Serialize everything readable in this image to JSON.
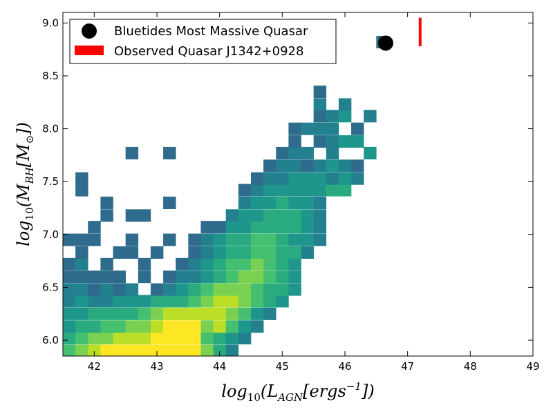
{
  "chart_data": {
    "type": "heatmap",
    "title": "",
    "xlabel": "log10(L_AGN[ergs^-1])",
    "ylabel": "log10(M_BH[M_⊙])",
    "xlim": [
      41.5,
      49
    ],
    "ylim": [
      5.85,
      9.1
    ],
    "xticks": [
      "42",
      "43",
      "44",
      "45",
      "46",
      "47",
      "48",
      "49"
    ],
    "yticks": [
      "6.0",
      "6.5",
      "7.0",
      "7.5",
      "8.0",
      "8.5",
      "9.0"
    ],
    "grid": false,
    "legend_position": "top-left",
    "bin_size": {
      "x": 0.2,
      "y": 0.116
    },
    "density_levels": "0 = dark teal (lowest counts) to 7 = bright yellow (highest counts)",
    "colors": {
      "density": [
        "#2f6b8c",
        "#23808f",
        "#1f968b",
        "#2aab7f",
        "#45bf70",
        "#7ad151",
        "#bbdf27",
        "#fde725"
      ],
      "point": "#000000",
      "observed": "#ff0000"
    },
    "bins": [
      {
        "y": 5.9,
        "x": [
          41.5,
          41.7,
          41.9,
          42.1,
          42.3,
          42.5,
          42.7,
          42.9,
          43.1,
          43.3,
          43.5,
          43.7,
          43.9,
          44.1
        ],
        "levels": [
          4,
          5,
          6,
          7,
          7,
          7,
          7,
          7,
          7,
          7,
          7,
          5,
          3,
          1
        ]
      },
      {
        "y": 6.02,
        "x": [
          41.5,
          41.7,
          41.9,
          42.1,
          42.3,
          42.5,
          42.7,
          42.9,
          43.1,
          43.3,
          43.5,
          43.7,
          43.9,
          44.1,
          44.3
        ],
        "levels": [
          3,
          4,
          5,
          5,
          6,
          6,
          6,
          7,
          7,
          7,
          7,
          4,
          3,
          2,
          1
        ]
      },
      {
        "y": 6.13,
        "x": [
          41.5,
          41.7,
          41.9,
          42.1,
          42.3,
          42.5,
          42.7,
          42.9,
          43.1,
          43.3,
          43.5,
          43.7,
          43.9,
          44.1,
          44.3,
          44.5
        ],
        "levels": [
          2,
          3,
          3,
          4,
          4,
          5,
          5,
          6,
          7,
          7,
          7,
          5,
          6,
          4,
          2,
          1
        ]
      },
      {
        "y": 6.25,
        "x": [
          41.5,
          41.7,
          41.9,
          42.1,
          42.3,
          42.5,
          42.7,
          42.9,
          43.1,
          43.3,
          43.5,
          43.7,
          43.9,
          44.1,
          44.3,
          44.5,
          44.7
        ],
        "levels": [
          2,
          2,
          3,
          3,
          3,
          3,
          4,
          5,
          6,
          6,
          6,
          6,
          6,
          5,
          4,
          2,
          1
        ]
      },
      {
        "y": 6.37,
        "x": [
          41.5,
          41.7,
          41.9,
          42.1,
          42.3,
          42.5,
          42.7,
          42.9,
          43.1,
          43.3,
          43.5,
          43.7,
          43.9,
          44.1,
          44.3,
          44.5,
          44.7,
          44.9
        ],
        "levels": [
          1,
          2,
          1,
          1,
          2,
          2,
          2,
          3,
          3,
          3,
          4,
          5,
          6,
          6,
          5,
          4,
          3,
          2
        ]
      },
      {
        "y": 6.48,
        "x": [
          41.5,
          41.7,
          41.9,
          42.1,
          42.3,
          42.5,
          42.9,
          43.1,
          43.3,
          43.5,
          43.7,
          43.9,
          44.1,
          44.3,
          44.5,
          44.7,
          44.9,
          45.1
        ],
        "levels": [
          1,
          1,
          0,
          1,
          0,
          1,
          0,
          1,
          2,
          3,
          4,
          5,
          5,
          5,
          4,
          3,
          3,
          2
        ]
      },
      {
        "y": 6.6,
        "x": [
          41.5,
          41.7,
          41.9,
          42.1,
          42.3,
          42.7,
          43.1,
          43.3,
          43.5,
          43.7,
          43.9,
          44.1,
          44.3,
          44.5,
          44.7,
          44.9,
          45.1
        ],
        "levels": [
          0,
          0,
          0,
          0,
          0,
          0,
          0,
          1,
          1,
          2,
          3,
          4,
          5,
          5,
          4,
          3,
          2
        ]
      },
      {
        "y": 6.72,
        "x": [
          41.5,
          41.7,
          42.1,
          42.7,
          43.3,
          43.5,
          43.7,
          43.9,
          44.1,
          44.3,
          44.5,
          44.7,
          44.9,
          45.1
        ],
        "levels": [
          0,
          1,
          0,
          0,
          0,
          1,
          2,
          3,
          4,
          4,
          5,
          4,
          3,
          2
        ]
      },
      {
        "y": 6.83,
        "x": [
          41.7,
          42.3,
          42.5,
          42.9,
          43.5,
          43.7,
          43.9,
          44.1,
          44.3,
          44.5,
          44.7,
          44.9,
          45.1,
          45.3
        ],
        "levels": [
          0,
          0,
          0,
          0,
          0,
          1,
          2,
          3,
          3,
          4,
          4,
          3,
          3,
          1
        ]
      },
      {
        "y": 6.95,
        "x": [
          41.5,
          41.7,
          41.9,
          42.5,
          43.1,
          43.5,
          43.7,
          43.9,
          44.1,
          44.3,
          44.5,
          44.7,
          44.9,
          45.1,
          45.3,
          45.5
        ],
        "levels": [
          0,
          0,
          0,
          0,
          0,
          0,
          1,
          2,
          3,
          3,
          4,
          4,
          3,
          2,
          2,
          1
        ]
      },
      {
        "y": 7.07,
        "x": [
          41.9,
          43.7,
          43.9,
          44.1,
          44.3,
          44.5,
          44.7,
          44.9,
          45.1,
          45.3,
          45.5
        ],
        "levels": [
          0,
          0,
          0,
          2,
          2,
          3,
          3,
          3,
          3,
          2,
          1
        ]
      },
      {
        "y": 7.18,
        "x": [
          42.1,
          42.5,
          42.7,
          44.1,
          44.3,
          44.5,
          44.7,
          44.9,
          45.1,
          45.3,
          45.5
        ],
        "levels": [
          0,
          0,
          0,
          1,
          2,
          2,
          3,
          3,
          3,
          2,
          1
        ]
      },
      {
        "y": 7.3,
        "x": [
          42.1,
          43.1,
          44.3,
          44.5,
          44.7,
          44.9,
          45.1,
          45.3,
          45.5
        ],
        "levels": [
          0,
          0,
          1,
          2,
          2,
          3,
          2,
          2,
          1
        ]
      },
      {
        "y": 7.42,
        "x": [
          41.7,
          44.3,
          44.5,
          44.7,
          44.9,
          45.1,
          45.3,
          45.5,
          45.7,
          45.9
        ],
        "levels": [
          0,
          0,
          1,
          2,
          2,
          2,
          2,
          2,
          3,
          3
        ]
      },
      {
        "y": 7.53,
        "x": [
          41.7,
          44.5,
          44.7,
          44.9,
          45.1,
          45.3,
          45.5,
          45.7,
          45.9,
          46.1
        ],
        "levels": [
          0,
          0,
          1,
          1,
          2,
          2,
          2,
          1,
          2,
          1
        ]
      },
      {
        "y": 7.65,
        "x": [
          44.7,
          44.9,
          45.1,
          45.3,
          45.5,
          45.7,
          45.9,
          46.1
        ],
        "levels": [
          0,
          1,
          1,
          0,
          1,
          2,
          1,
          0
        ]
      },
      {
        "y": 7.77,
        "x": [
          42.5,
          43.1,
          44.9,
          45.1,
          45.3,
          45.7,
          46.3
        ],
        "levels": [
          0,
          0,
          0,
          1,
          1,
          1,
          2
        ]
      },
      {
        "y": 7.88,
        "x": [
          45.1,
          45.5,
          45.7,
          45.9,
          46.1
        ],
        "levels": [
          0,
          0,
          1,
          2,
          2
        ]
      },
      {
        "y": 8.0,
        "x": [
          45.1,
          45.3,
          45.5,
          45.7,
          46.1
        ],
        "levels": [
          0,
          1,
          1,
          1,
          0
        ]
      },
      {
        "y": 8.12,
        "x": [
          45.5,
          45.7,
          45.9,
          46.3
        ],
        "levels": [
          0,
          1,
          2,
          1
        ]
      },
      {
        "y": 8.23,
        "x": [
          45.5,
          45.9
        ],
        "levels": [
          1,
          1
        ]
      },
      {
        "y": 8.35,
        "x": [
          45.5
        ],
        "levels": [
          0
        ]
      },
      {
        "y": 8.82,
        "x": [
          46.5
        ],
        "levels": [
          0
        ]
      }
    ],
    "series": [
      {
        "name": "Bluetides Most Massive Quasar",
        "type": "scatter",
        "x": [
          46.65
        ],
        "y": [
          8.81
        ]
      },
      {
        "name": "Observed Quasar J1342+0928",
        "type": "vline",
        "x": 47.2,
        "y_range": [
          8.78,
          9.05
        ]
      }
    ]
  }
}
